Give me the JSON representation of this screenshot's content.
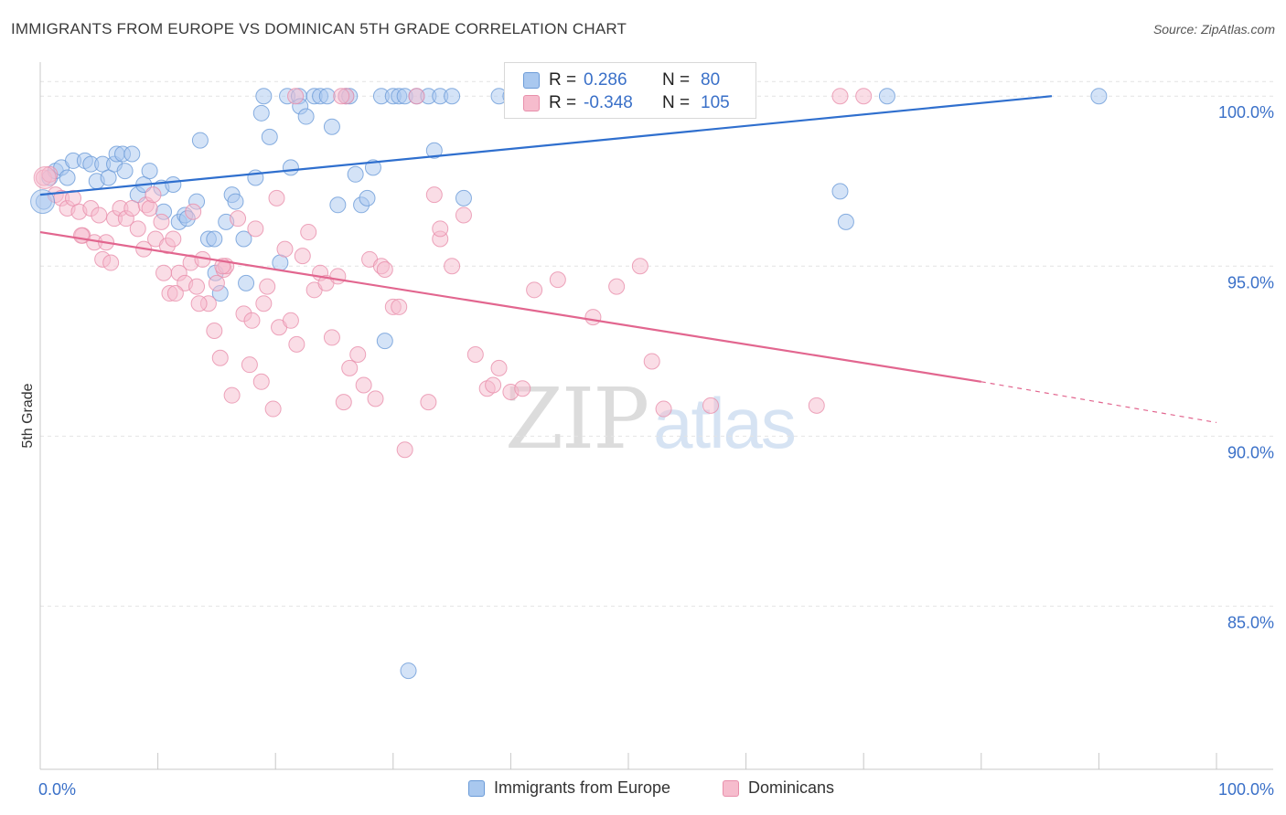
{
  "title": "IMMIGRANTS FROM EUROPE VS DOMINICAN 5TH GRADE CORRELATION CHART",
  "source": "Source: ZipAtlas.com",
  "watermark": {
    "zip": "ZIP",
    "atlas": "atlas"
  },
  "colors": {
    "europe_fill": "#a9c8ef",
    "europe_stroke": "#6b9bd8",
    "europe_line": "#2f6fce",
    "dominican_fill": "#f6bccd",
    "dominican_stroke": "#e88fab",
    "dominican_line": "#e2668f",
    "tick_label": "#3a70c8",
    "grid": "#e4e4e4"
  },
  "stats": [
    {
      "r_label": "R =",
      "r_value": " 0.286",
      "n_label": "N =",
      "n_value": " 80"
    },
    {
      "r_label": "R =",
      "r_value": "-0.348",
      "n_label": "N =",
      "n_value": "105"
    }
  ],
  "legend": [
    "Immigrants from Europe",
    "Dominicans"
  ],
  "chart_data": {
    "type": "scatter",
    "xlabel": "",
    "ylabel": "5th Grade",
    "x_tick_labels": [
      "0.0%",
      "100.0%"
    ],
    "y_tick_labels": [
      "100.0%",
      "95.0%",
      "90.0%",
      "85.0%"
    ],
    "y_ticks": [
      100,
      95,
      90,
      85
    ],
    "xlim": [
      0,
      100
    ],
    "ylim": [
      80.2,
      101.0
    ],
    "grid": true,
    "legend_position": "bottom",
    "series": [
      {
        "name": "Immigrants from Europe",
        "trend": {
          "x": [
            0,
            86
          ],
          "y": [
            97.1,
            100.0
          ]
        },
        "points": [
          [
            0.3,
            96.9
          ],
          [
            0.8,
            97.6
          ],
          [
            1.3,
            97.8
          ],
          [
            1.8,
            97.9
          ],
          [
            2.3,
            97.6
          ],
          [
            2.8,
            98.1
          ],
          [
            3.8,
            98.1
          ],
          [
            4.3,
            98.0
          ],
          [
            4.8,
            97.5
          ],
          [
            5.3,
            98.0
          ],
          [
            5.8,
            97.6
          ],
          [
            6.3,
            98.0
          ],
          [
            6.5,
            98.3
          ],
          [
            7.0,
            98.3
          ],
          [
            7.2,
            97.8
          ],
          [
            7.8,
            98.3
          ],
          [
            8.3,
            97.1
          ],
          [
            8.8,
            97.4
          ],
          [
            9.3,
            97.8
          ],
          [
            10.3,
            97.3
          ],
          [
            10.5,
            96.6
          ],
          [
            11.3,
            97.4
          ],
          [
            11.8,
            96.3
          ],
          [
            12.3,
            96.5
          ],
          [
            12.5,
            96.4
          ],
          [
            13.3,
            96.9
          ],
          [
            13.6,
            98.7
          ],
          [
            14.3,
            95.8
          ],
          [
            14.8,
            95.8
          ],
          [
            14.9,
            94.8
          ],
          [
            15.3,
            94.2
          ],
          [
            15.8,
            96.3
          ],
          [
            16.3,
            97.1
          ],
          [
            16.6,
            96.9
          ],
          [
            17.3,
            95.8
          ],
          [
            17.5,
            94.5
          ],
          [
            18.3,
            97.6
          ],
          [
            18.8,
            99.5
          ],
          [
            19.0,
            100.0
          ],
          [
            19.5,
            98.8
          ],
          [
            20.4,
            95.1
          ],
          [
            21.0,
            100.0
          ],
          [
            21.3,
            97.9
          ],
          [
            22.0,
            100.0
          ],
          [
            22.1,
            99.7
          ],
          [
            22.6,
            99.4
          ],
          [
            23.3,
            100.0
          ],
          [
            23.8,
            100.0
          ],
          [
            24.4,
            100.0
          ],
          [
            24.8,
            99.1
          ],
          [
            25.3,
            96.8
          ],
          [
            26.0,
            100.0
          ],
          [
            26.3,
            100.0
          ],
          [
            26.8,
            97.7
          ],
          [
            27.3,
            96.8
          ],
          [
            27.8,
            97.0
          ],
          [
            28.3,
            97.9
          ],
          [
            29.0,
            100.0
          ],
          [
            29.3,
            92.8
          ],
          [
            30.0,
            100.0
          ],
          [
            30.5,
            100.0
          ],
          [
            31.0,
            100.0
          ],
          [
            31.3,
            83.1
          ],
          [
            32.0,
            100.0
          ],
          [
            33.0,
            100.0
          ],
          [
            33.5,
            98.4
          ],
          [
            34.0,
            100.0
          ],
          [
            35.0,
            100.0
          ],
          [
            36.0,
            97.0
          ],
          [
            39.0,
            100.0
          ],
          [
            40.0,
            100.0
          ],
          [
            44.0,
            100.0
          ],
          [
            47.0,
            100.0
          ],
          [
            50.0,
            100.0
          ],
          [
            57.0,
            100.0
          ],
          [
            60.0,
            100.0
          ],
          [
            68.0,
            97.2
          ],
          [
            68.5,
            96.3
          ],
          [
            72.0,
            100.0
          ],
          [
            90.0,
            100.0
          ]
        ]
      },
      {
        "name": "Dominicans",
        "trend": {
          "x": [
            0,
            80
          ],
          "y": [
            96.0,
            91.6
          ]
        },
        "trend_dashed": {
          "x": [
            80,
            100
          ],
          "y": [
            91.6,
            90.4
          ]
        },
        "points": [
          [
            0.3,
            97.6
          ],
          [
            0.8,
            97.7
          ],
          [
            1.3,
            97.1
          ],
          [
            1.8,
            97.0
          ],
          [
            2.3,
            96.7
          ],
          [
            2.8,
            97.0
          ],
          [
            3.3,
            96.6
          ],
          [
            3.6,
            95.9
          ],
          [
            4.3,
            96.7
          ],
          [
            4.6,
            95.7
          ],
          [
            5.0,
            96.5
          ],
          [
            5.3,
            95.2
          ],
          [
            5.6,
            95.7
          ],
          [
            6.0,
            95.1
          ],
          [
            6.3,
            96.4
          ],
          [
            6.8,
            96.7
          ],
          [
            7.3,
            96.4
          ],
          [
            7.8,
            96.7
          ],
          [
            8.3,
            96.1
          ],
          [
            8.8,
            95.5
          ],
          [
            9.0,
            96.8
          ],
          [
            9.3,
            96.7
          ],
          [
            9.8,
            95.8
          ],
          [
            10.3,
            96.3
          ],
          [
            10.5,
            94.8
          ],
          [
            10.8,
            95.6
          ],
          [
            11.0,
            94.2
          ],
          [
            11.3,
            95.8
          ],
          [
            11.8,
            94.8
          ],
          [
            12.3,
            94.5
          ],
          [
            12.8,
            95.1
          ],
          [
            13.0,
            96.6
          ],
          [
            13.3,
            94.4
          ],
          [
            13.8,
            95.2
          ],
          [
            14.3,
            93.9
          ],
          [
            14.8,
            93.1
          ],
          [
            15.0,
            94.5
          ],
          [
            15.3,
            92.3
          ],
          [
            15.6,
            94.9
          ],
          [
            15.8,
            95.0
          ],
          [
            16.3,
            91.2
          ],
          [
            16.8,
            96.4
          ],
          [
            17.3,
            93.6
          ],
          [
            17.8,
            92.1
          ],
          [
            18.0,
            93.4
          ],
          [
            18.3,
            96.1
          ],
          [
            18.8,
            91.6
          ],
          [
            19.0,
            93.9
          ],
          [
            19.3,
            94.4
          ],
          [
            19.8,
            90.8
          ],
          [
            20.3,
            93.2
          ],
          [
            20.8,
            95.5
          ],
          [
            21.3,
            93.4
          ],
          [
            21.8,
            92.7
          ],
          [
            22.3,
            95.3
          ],
          [
            22.8,
            96.0
          ],
          [
            23.3,
            94.3
          ],
          [
            23.8,
            94.8
          ],
          [
            24.3,
            94.5
          ],
          [
            24.8,
            92.9
          ],
          [
            25.3,
            94.7
          ],
          [
            25.8,
            91.0
          ],
          [
            26.0,
            100.0
          ],
          [
            26.3,
            92.0
          ],
          [
            27.0,
            92.4
          ],
          [
            27.5,
            91.5
          ],
          [
            28.0,
            95.2
          ],
          [
            28.5,
            91.1
          ],
          [
            29.0,
            95.0
          ],
          [
            30.0,
            93.8
          ],
          [
            30.5,
            93.8
          ],
          [
            31.0,
            89.6
          ],
          [
            32.0,
            100.0
          ],
          [
            33.0,
            91.0
          ],
          [
            34.0,
            95.8
          ],
          [
            35.0,
            95.0
          ],
          [
            36.0,
            96.5
          ],
          [
            37.0,
            92.4
          ],
          [
            38.0,
            91.4
          ],
          [
            38.5,
            91.5
          ],
          [
            39.0,
            92.0
          ],
          [
            40.0,
            91.3
          ],
          [
            41.0,
            91.4
          ],
          [
            42.0,
            94.3
          ],
          [
            44.0,
            94.6
          ],
          [
            47.0,
            93.5
          ],
          [
            49.0,
            94.4
          ],
          [
            51.0,
            95.0
          ],
          [
            52.0,
            92.2
          ],
          [
            53.0,
            90.8
          ],
          [
            57.0,
            90.9
          ],
          [
            60.0,
            100.0
          ],
          [
            66.0,
            90.9
          ],
          [
            68.0,
            100.0
          ],
          [
            70.0,
            100.0
          ],
          [
            3.5,
            95.9
          ],
          [
            9.6,
            97.1
          ],
          [
            11.5,
            94.2
          ],
          [
            15.5,
            95.0
          ],
          [
            21.7,
            100.0
          ],
          [
            25.6,
            100.0
          ],
          [
            34.0,
            96.1
          ],
          [
            20.1,
            97.0
          ],
          [
            29.3,
            94.9
          ],
          [
            13.5,
            93.9
          ],
          [
            33.5,
            97.1
          ]
        ]
      }
    ]
  }
}
